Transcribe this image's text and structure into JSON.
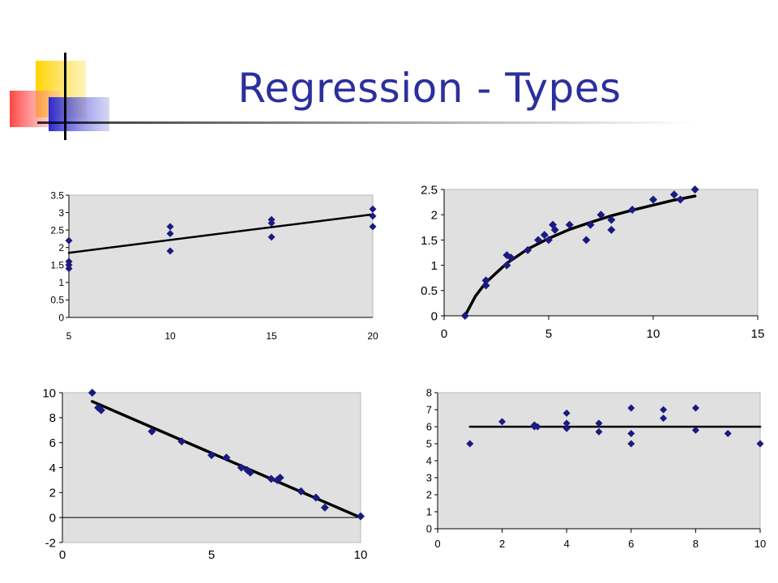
{
  "slide": {
    "title": "Regression - Types"
  },
  "colors": {
    "title": "#2b2f9e",
    "plot_bg": "#e0e0e0",
    "marker": "#1a1a80",
    "line": "#000000"
  },
  "chart_data": [
    {
      "type": "scatter",
      "title": "",
      "xlabel": "",
      "ylabel": "",
      "xlim": [
        5,
        20
      ],
      "ylim": [
        0,
        3.5
      ],
      "x_ticks": [
        "5",
        "10",
        "15",
        "20"
      ],
      "y_ticks": [
        "0",
        "0.5",
        "1",
        "1.5",
        "2",
        "2.5",
        "3",
        "3.5"
      ],
      "points": [
        [
          5,
          2.2
        ],
        [
          5,
          1.6
        ],
        [
          5,
          1.5
        ],
        [
          5,
          1.4
        ],
        [
          10,
          2.6
        ],
        [
          10,
          2.4
        ],
        [
          10,
          1.9
        ],
        [
          15,
          2.8
        ],
        [
          15,
          2.7
        ],
        [
          15,
          2.3
        ],
        [
          20,
          3.1
        ],
        [
          20,
          2.9
        ],
        [
          20,
          2.6
        ]
      ],
      "fit_line": [
        [
          5,
          1.85
        ],
        [
          20,
          2.95
        ]
      ],
      "grid": false,
      "legend": "none"
    },
    {
      "type": "scatter",
      "title": "",
      "xlabel": "",
      "ylabel": "",
      "xlim": [
        0,
        15
      ],
      "ylim": [
        0,
        2.5
      ],
      "x_ticks": [
        "0",
        "5",
        "10",
        "15"
      ],
      "y_ticks": [
        "0",
        "0.5",
        "1",
        "1.5",
        "2",
        "2.5"
      ],
      "points": [
        [
          1,
          0
        ],
        [
          2,
          0.6
        ],
        [
          2,
          0.7
        ],
        [
          3,
          1.0
        ],
        [
          3,
          1.2
        ],
        [
          3.2,
          1.15
        ],
        [
          4,
          1.3
        ],
        [
          4.5,
          1.5
        ],
        [
          4.8,
          1.6
        ],
        [
          5,
          1.5
        ],
        [
          5.2,
          1.8
        ],
        [
          5.3,
          1.7
        ],
        [
          6,
          1.8
        ],
        [
          6.8,
          1.5
        ],
        [
          7,
          1.8
        ],
        [
          7.5,
          2.0
        ],
        [
          8,
          1.9
        ],
        [
          8,
          1.7
        ],
        [
          9,
          2.1
        ],
        [
          10,
          2.3
        ],
        [
          11,
          2.4
        ],
        [
          11.3,
          2.3
        ],
        [
          12,
          2.5
        ]
      ],
      "fit_line": [
        [
          1,
          0
        ],
        [
          1.5,
          0.39
        ],
        [
          2,
          0.66
        ],
        [
          3,
          1.04
        ],
        [
          4,
          1.32
        ],
        [
          5,
          1.53
        ],
        [
          6,
          1.71
        ],
        [
          7,
          1.85
        ],
        [
          8,
          1.98
        ],
        [
          9,
          2.09
        ],
        [
          10,
          2.19
        ],
        [
          11,
          2.29
        ],
        [
          12,
          2.37
        ]
      ],
      "grid": false,
      "legend": "none"
    },
    {
      "type": "scatter",
      "title": "",
      "xlabel": "",
      "ylabel": "",
      "xlim": [
        0,
        10
      ],
      "ylim": [
        -2,
        10
      ],
      "x_ticks": [
        "0",
        "5",
        "10"
      ],
      "y_ticks": [
        "-2",
        "0",
        "2",
        "4",
        "6",
        "8",
        "10"
      ],
      "points": [
        [
          1,
          10
        ],
        [
          1.2,
          8.8
        ],
        [
          1.3,
          8.6
        ],
        [
          3,
          6.9
        ],
        [
          4,
          6.1
        ],
        [
          5,
          5.0
        ],
        [
          5.5,
          4.8
        ],
        [
          6,
          4.0
        ],
        [
          6.2,
          3.8
        ],
        [
          6.3,
          3.6
        ],
        [
          7,
          3.1
        ],
        [
          7.2,
          3.0
        ],
        [
          7.3,
          3.2
        ],
        [
          8,
          2.1
        ],
        [
          8.5,
          1.6
        ],
        [
          8.8,
          0.8
        ],
        [
          10,
          0.1
        ]
      ],
      "fit_line": [
        [
          1,
          9.3
        ],
        [
          10,
          0
        ]
      ],
      "grid": false,
      "legend": "none"
    },
    {
      "type": "scatter",
      "title": "",
      "xlabel": "",
      "ylabel": "",
      "xlim": [
        0,
        10
      ],
      "ylim": [
        0,
        8
      ],
      "x_ticks": [
        "0",
        "2",
        "4",
        "6",
        "8",
        "10"
      ],
      "y_ticks": [
        "0",
        "1",
        "2",
        "3",
        "4",
        "5",
        "6",
        "7",
        "8"
      ],
      "points": [
        [
          1,
          5.0
        ],
        [
          2,
          6.3
        ],
        [
          3,
          6.1
        ],
        [
          3,
          6.0
        ],
        [
          3.1,
          6.0
        ],
        [
          4,
          6.8
        ],
        [
          4,
          6.2
        ],
        [
          4,
          5.9
        ],
        [
          5,
          6.2
        ],
        [
          5,
          5.7
        ],
        [
          6,
          7.1
        ],
        [
          6,
          5.6
        ],
        [
          6,
          5.0
        ],
        [
          7,
          7.0
        ],
        [
          7,
          6.5
        ],
        [
          8,
          7.1
        ],
        [
          8,
          5.8
        ],
        [
          9,
          5.6
        ],
        [
          10,
          5.0
        ]
      ],
      "fit_line": [
        [
          1,
          6.0
        ],
        [
          10,
          6.0
        ]
      ],
      "grid": false,
      "legend": "none"
    }
  ]
}
